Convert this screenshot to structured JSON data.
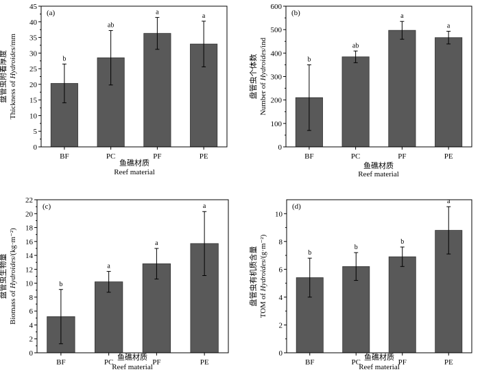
{
  "colors": {
    "bar": "#595959",
    "axis": "#000000",
    "background": "#ffffff"
  },
  "chart_data": [
    {
      "type": "bar",
      "panel_label": "(a)",
      "categories": [
        "BF",
        "PC",
        "PF",
        "PE"
      ],
      "values": [
        20.3,
        28.5,
        36.3,
        32.9
      ],
      "errors": [
        6.2,
        8.7,
        5.1,
        7.3
      ],
      "letters": [
        "b",
        "ab",
        "a",
        "a"
      ],
      "ylim": [
        0,
        45
      ],
      "yticks": [
        0,
        5,
        10,
        15,
        20,
        25,
        30,
        35,
        40,
        45
      ],
      "ylabel_cn": "盘管虫附着厚度",
      "ylabel_en_prefix": "Thickness of ",
      "ylabel_en_italic": "Hydroides",
      "ylabel_en_suffix": "/mm",
      "xlabel_cn": "鱼礁材质",
      "xlabel_en": "Reef material"
    },
    {
      "type": "bar",
      "panel_label": "(b)",
      "categories": [
        "BF",
        "PC",
        "PF",
        "PE"
      ],
      "values": [
        210,
        384,
        497,
        466
      ],
      "errors": [
        140,
        25,
        38,
        27
      ],
      "letters": [
        "b",
        "ab",
        "a",
        "a"
      ],
      "ylim": [
        0,
        600
      ],
      "yticks": [
        0,
        100,
        200,
        300,
        400,
        500,
        600
      ],
      "ylabel_cn": "盘管虫个体数",
      "ylabel_en_prefix": "Number of ",
      "ylabel_en_italic": "Hydroides",
      "ylabel_en_suffix": "/ind",
      "xlabel_cn": "鱼礁材质",
      "xlabel_en": "Reef material"
    },
    {
      "type": "bar",
      "panel_label": "(c)",
      "categories": [
        "BF",
        "PC",
        "PF",
        "PE"
      ],
      "values": [
        5.2,
        10.2,
        12.8,
        15.7
      ],
      "errors": [
        3.9,
        1.5,
        2.2,
        4.6
      ],
      "letters": [
        "b",
        "a",
        "a",
        "a"
      ],
      "ylim": [
        0,
        22
      ],
      "yticks": [
        0,
        2,
        4,
        6,
        8,
        10,
        12,
        14,
        16,
        18,
        20,
        22
      ],
      "ylabel_cn": "盘管虫生物量",
      "ylabel_en_prefix": "Biomass of ",
      "ylabel_en_italic": "Hydroides",
      "ylabel_en_suffix": "/(kg·m⁻²)",
      "xlabel_cn": "鱼礁材质",
      "xlabel_en": "Reef material"
    },
    {
      "type": "bar",
      "panel_label": "(d)",
      "categories": [
        "BF",
        "PC",
        "PF",
        "PE"
      ],
      "values": [
        5.4,
        6.2,
        6.9,
        8.8
      ],
      "errors": [
        1.4,
        1.0,
        0.7,
        1.7
      ],
      "letters": [
        "b",
        "b",
        "b",
        "a"
      ],
      "ylim": [
        0,
        11
      ],
      "yticks": [
        0,
        2,
        4,
        6,
        8,
        10
      ],
      "ylabel_cn": "盘管虫有机质含量",
      "ylabel_en_prefix": "TOM of ",
      "ylabel_en_italic": "Hydroides",
      "ylabel_en_suffix": "/(g·m⁻²)",
      "xlabel_cn": "鱼礁材质",
      "xlabel_en": "Reef material"
    }
  ]
}
